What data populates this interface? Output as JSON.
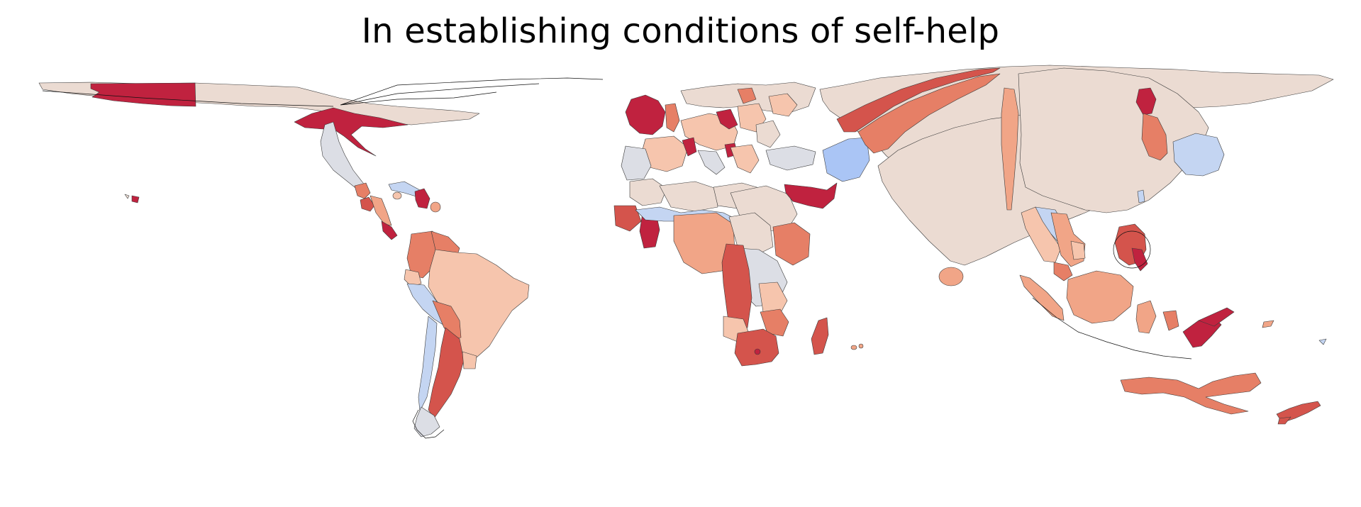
{
  "title": "In establishing conditions of self-help",
  "palette": {
    "strong_red": "#c0223f",
    "red": "#d4544c",
    "orange_red": "#e67f66",
    "salmon": "#f1a587",
    "light_salmon": "#f6c5ad",
    "neutral": "#ebdbd2",
    "gray_blue": "#dcdee5",
    "light_blue": "#c4d5f2",
    "blue": "#aac5f5",
    "outline": "#3a3a3a"
  },
  "regions": [
    {
      "name": "alaska-west",
      "level": "strong_red"
    },
    {
      "name": "north-america-main",
      "level": "neutral"
    },
    {
      "name": "north-america-center",
      "level": "strong_red"
    },
    {
      "name": "mexico",
      "level": "gray_blue"
    },
    {
      "name": "central-america-a",
      "level": "orange_red"
    },
    {
      "name": "central-america-b",
      "level": "red"
    },
    {
      "name": "central-america-c",
      "level": "salmon"
    },
    {
      "name": "central-america-d",
      "level": "strong_red"
    },
    {
      "name": "cuba",
      "level": "light_blue"
    },
    {
      "name": "haiti",
      "level": "strong_red"
    },
    {
      "name": "caribbean-small",
      "level": "salmon"
    },
    {
      "name": "colombia",
      "level": "orange_red"
    },
    {
      "name": "venezuela",
      "level": "orange_red"
    },
    {
      "name": "ecuador",
      "level": "light_salmon"
    },
    {
      "name": "peru",
      "level": "light_blue"
    },
    {
      "name": "brazil",
      "level": "light_salmon"
    },
    {
      "name": "bolivia",
      "level": "orange_red"
    },
    {
      "name": "chile",
      "level": "light_blue"
    },
    {
      "name": "argentina",
      "level": "red"
    },
    {
      "name": "uruguay",
      "level": "light_salmon"
    },
    {
      "name": "patagonia",
      "level": "gray_blue"
    },
    {
      "name": "ireland",
      "level": "strong_red"
    },
    {
      "name": "uk",
      "level": "orange_red"
    },
    {
      "name": "france",
      "level": "light_salmon"
    },
    {
      "name": "spain",
      "level": "gray_blue"
    },
    {
      "name": "germany",
      "level": "light_salmon"
    },
    {
      "name": "poland",
      "level": "strong_red"
    },
    {
      "name": "scandinavia",
      "level": "neutral"
    },
    {
      "name": "italy",
      "level": "gray_blue"
    },
    {
      "name": "balkans",
      "level": "light_salmon"
    },
    {
      "name": "turkey",
      "level": "gray_blue"
    },
    {
      "name": "morocco",
      "level": "neutral"
    },
    {
      "name": "algeria",
      "level": "neutral"
    },
    {
      "name": "libya",
      "level": "neutral"
    },
    {
      "name": "egypt",
      "level": "neutral"
    },
    {
      "name": "sudan",
      "level": "neutral"
    },
    {
      "name": "west-africa-a",
      "level": "red"
    },
    {
      "name": "west-africa-b",
      "level": "strong_red"
    },
    {
      "name": "west-africa-c",
      "level": "light_blue"
    },
    {
      "name": "nigeria",
      "level": "salmon"
    },
    {
      "name": "ethiopia",
      "level": "orange_red"
    },
    {
      "name": "congo",
      "level": "red"
    },
    {
      "name": "central-africa",
      "level": "gray_blue"
    },
    {
      "name": "tanzania",
      "level": "light_salmon"
    },
    {
      "name": "angola",
      "level": "light_salmon"
    },
    {
      "name": "mozambique",
      "level": "orange_red"
    },
    {
      "name": "south-africa",
      "level": "red"
    },
    {
      "name": "madagascar",
      "level": "red"
    },
    {
      "name": "arabia",
      "level": "strong_red"
    },
    {
      "name": "iran",
      "level": "blue"
    },
    {
      "name": "russia",
      "level": "neutral"
    },
    {
      "name": "central-asia-strip",
      "level": "red"
    },
    {
      "name": "kazakhstan",
      "level": "orange_red"
    },
    {
      "name": "india",
      "level": "neutral"
    },
    {
      "name": "sri-lanka",
      "level": "salmon"
    },
    {
      "name": "bangladesh-strip",
      "level": "salmon"
    },
    {
      "name": "myanmar",
      "level": "light_salmon"
    },
    {
      "name": "thailand",
      "level": "light_blue"
    },
    {
      "name": "vietnam",
      "level": "salmon"
    },
    {
      "name": "china",
      "level": "neutral"
    },
    {
      "name": "korea",
      "level": "strong_red"
    },
    {
      "name": "korea-south",
      "level": "orange_red"
    },
    {
      "name": "japan",
      "level": "light_blue"
    },
    {
      "name": "philippines",
      "level": "red"
    },
    {
      "name": "indonesia",
      "level": "salmon"
    },
    {
      "name": "borneo",
      "level": "salmon"
    },
    {
      "name": "new-guinea",
      "level": "strong_red"
    },
    {
      "name": "australia",
      "level": "orange_red"
    },
    {
      "name": "new-zealand",
      "level": "red"
    }
  ]
}
